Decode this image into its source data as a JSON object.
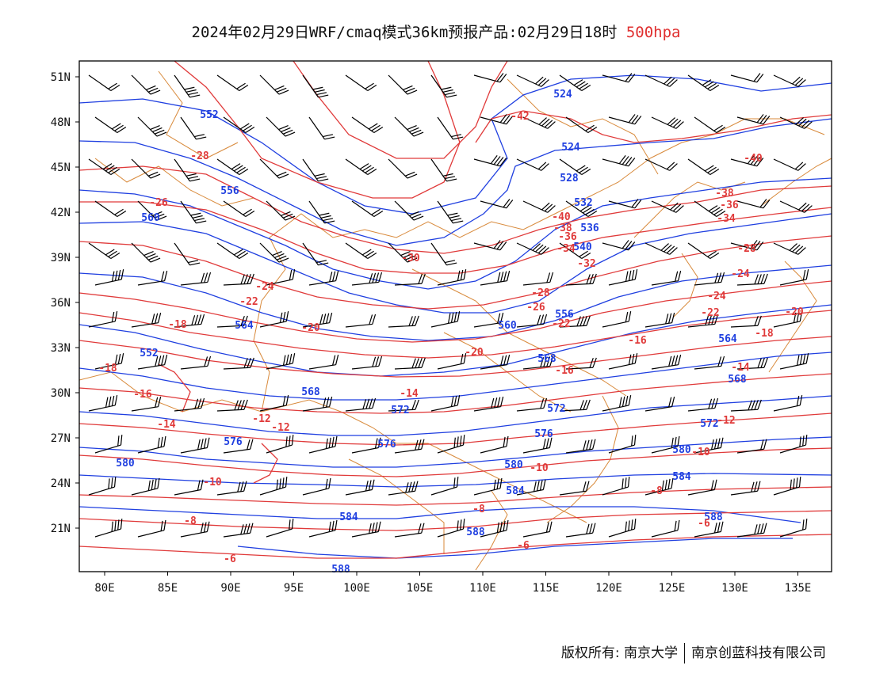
{
  "title": {
    "main": "2024年02月29日WRF/cmaq模式36km预报产品:02月29日18时",
    "level": "500hpa"
  },
  "colors": {
    "height_contour": "#1f3fe0",
    "temp_contour": "#e03a3a",
    "boundary": "#d8893a",
    "barb": "#000000"
  },
  "axes": {
    "lon_ticks": [
      "80E",
      "85E",
      "90E",
      "95E",
      "100E",
      "105E",
      "110E",
      "115E",
      "120E",
      "125E",
      "130E",
      "135E"
    ],
    "lat_ticks": [
      "51N",
      "48N",
      "45N",
      "42N",
      "39N",
      "36N",
      "33N",
      "30N",
      "27N",
      "24N",
      "21N"
    ]
  },
  "height_labels": [
    "552",
    "524",
    "524",
    "528",
    "532",
    "536",
    "540",
    "556",
    "560",
    "564",
    "560",
    "556",
    "552",
    "568",
    "568",
    "564",
    "572",
    "572",
    "576",
    "576",
    "580",
    "580",
    "584",
    "584",
    "588",
    "588",
    "572",
    "568",
    "576",
    "580",
    "584",
    "588"
  ],
  "temp_labels": [
    "-42",
    "-40",
    "-38",
    "-36",
    "-34",
    "-32",
    "-30",
    "-28",
    "-28",
    "-26",
    "-26",
    "-24",
    "-24",
    "-22",
    "-22",
    "-20",
    "-20",
    "-18",
    "-18",
    "-16",
    "-16",
    "-14",
    "-14",
    "-12",
    "-12",
    "-10",
    "-10",
    "-8",
    "-8",
    "-6",
    "-6",
    "-40",
    "-38",
    "-36",
    "-34",
    "-28",
    "-24",
    "-22",
    "-20",
    "-18",
    "-16",
    "-14",
    "-12",
    "-10",
    "-8",
    "-6"
  ],
  "footer": {
    "left": "版权所有: 南京大学",
    "right": "南京创蓝科技有限公司"
  }
}
